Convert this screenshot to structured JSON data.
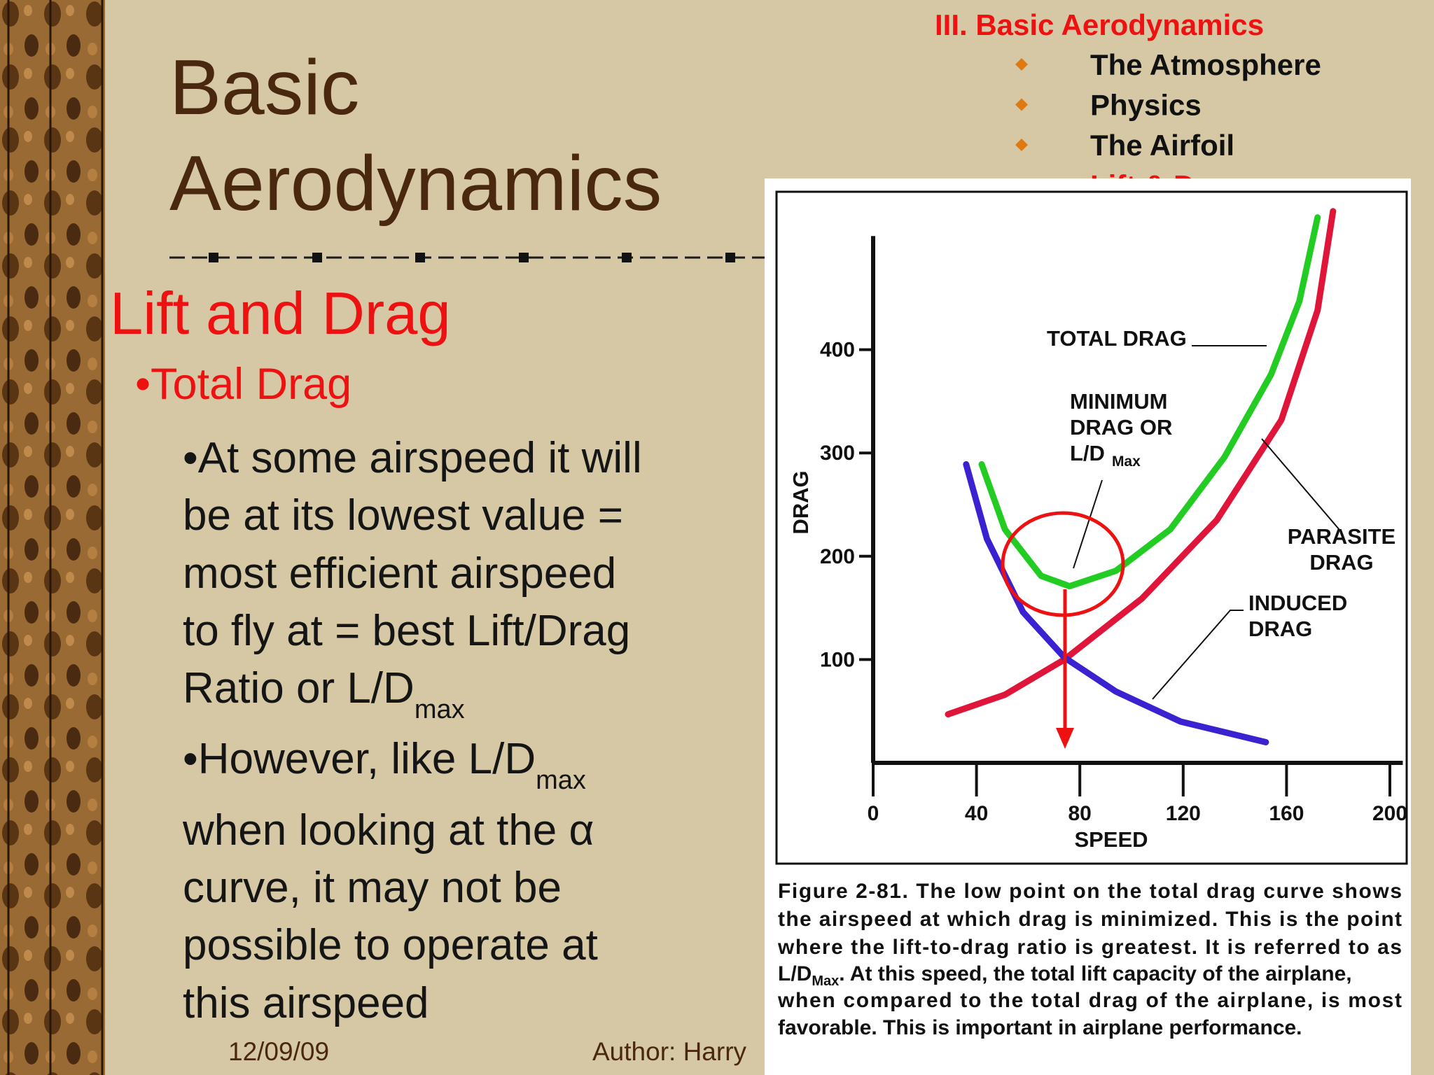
{
  "slide": {
    "title": [
      "Basic",
      "Aerodynamics"
    ],
    "heading": "Lift and Drag",
    "subheading": "•Total Drag",
    "body": [
      [
        "•At some airspeed it will"
      ],
      [
        "be at its lowest value ="
      ],
      [
        "most efficient airspeed"
      ],
      [
        "to fly at = best Lift/Drag"
      ],
      [
        "Ratio or L/D",
        "max"
      ],
      [
        "•However, like L/D",
        "max"
      ],
      [
        "when looking at the α"
      ],
      [
        "curve, it may not be"
      ],
      [
        "possible to operate at"
      ],
      [
        "this airspeed"
      ]
    ],
    "footer": {
      "date": "12/09/09",
      "author": "Author:  Harry"
    },
    "nav": {
      "section": "III. Basic Aerodynamics",
      "items": [
        "The Atmosphere",
        "Physics",
        "The Airfoil",
        "Lift & Drag"
      ]
    }
  },
  "chart_data": {
    "type": "line",
    "xlabel": "SPEED",
    "ylabel": "DRAG",
    "xlim": [
      0,
      205
    ],
    "ylim": [
      0,
      510
    ],
    "xticks": [
      0,
      40,
      80,
      120,
      160,
      200
    ],
    "yticks": [
      100,
      200,
      300,
      400
    ],
    "series": [
      {
        "color": "#e0153a",
        "x": [
          29,
          51,
          74,
          104,
          133,
          158,
          172,
          178
        ],
        "values": [
          47,
          66,
          100,
          159,
          235,
          332,
          438,
          534
        ]
      },
      {
        "color": "#22cc22",
        "x": [
          42,
          51,
          65,
          76,
          94,
          115,
          136,
          154,
          165,
          172
        ],
        "values": [
          289,
          226,
          181,
          171,
          186,
          226,
          296,
          376,
          447,
          528
        ]
      },
      {
        "color": "#3a22d0",
        "x": [
          36,
          44,
          58,
          74,
          94,
          119,
          152
        ],
        "values": [
          289,
          217,
          146,
          102,
          69,
          40,
          20
        ]
      }
    ],
    "annotations": [
      {
        "lines": [
          "TOTAL DRAG"
        ]
      },
      {
        "lines": [
          "MINIMUM",
          "DRAG OR",
          "L/D"
        ],
        "sub": "Max"
      },
      {
        "lines": [
          "PARASITE",
          "DRAG"
        ]
      },
      {
        "lines": [
          "INDUCED",
          "DRAG"
        ]
      }
    ],
    "caption": [
      [
        "Figure 2-81. The low point on the total drag curve shows"
      ],
      [
        "the airspeed at which drag is minimized. This is the point"
      ],
      [
        "where the lift-to-drag ratio is greatest. It is referred to as"
      ],
      [
        "L/D",
        "Max",
        ". At this speed, the total lift capacity of the airplane,"
      ],
      [
        "when compared to the total drag of the airplane, is most"
      ],
      [
        "favorable. This is important in airplane performance."
      ]
    ]
  }
}
